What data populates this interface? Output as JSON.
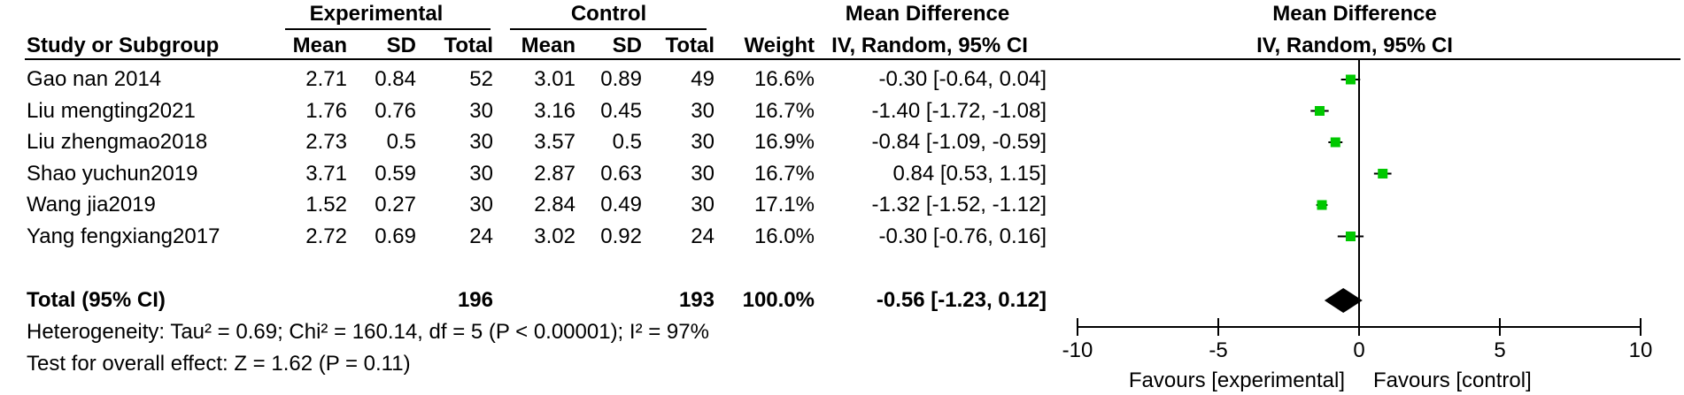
{
  "header": {
    "group1": "Experimental",
    "group2": "Control",
    "effect_title": "Mean Difference",
    "plot_title": "Mean Difference",
    "col_study": "Study or Subgroup",
    "col_mean1": "Mean",
    "col_sd1": "SD",
    "col_total1": "Total",
    "col_mean2": "Mean",
    "col_sd2": "SD",
    "col_total2": "Total",
    "col_weight": "Weight",
    "col_effect": "IV, Random, 95% CI",
    "plot_subtitle": "IV, Random, 95% CI"
  },
  "studies": [
    {
      "name": "Gao nan 2014",
      "mean1": "2.71",
      "sd1": "0.84",
      "total1": "52",
      "mean2": "3.01",
      "sd2": "0.89",
      "total2": "49",
      "weight": "16.6%",
      "ci_text": "-0.30 [-0.64, 0.04]"
    },
    {
      "name": "Liu mengting2021",
      "mean1": "1.76",
      "sd1": "0.76",
      "total1": "30",
      "mean2": "3.16",
      "sd2": "0.45",
      "total2": "30",
      "weight": "16.7%",
      "ci_text": "-1.40 [-1.72, -1.08]"
    },
    {
      "name": "Liu zhengmao2018",
      "mean1": "2.73",
      "sd1": "0.5",
      "total1": "30",
      "mean2": "3.57",
      "sd2": "0.5",
      "total2": "30",
      "weight": "16.9%",
      "ci_text": "-0.84 [-1.09, -0.59]"
    },
    {
      "name": "Shao yuchun2019",
      "mean1": "3.71",
      "sd1": "0.59",
      "total1": "30",
      "mean2": "2.87",
      "sd2": "0.63",
      "total2": "30",
      "weight": "16.7%",
      "ci_text": "0.84 [0.53, 1.15]"
    },
    {
      "name": "Wang jia2019",
      "mean1": "1.52",
      "sd1": "0.27",
      "total1": "30",
      "mean2": "2.84",
      "sd2": "0.49",
      "total2": "30",
      "weight": "17.1%",
      "ci_text": "-1.32 [-1.52, -1.12]"
    },
    {
      "name": "Yang fengxiang2017",
      "mean1": "2.72",
      "sd1": "0.69",
      "total1": "24",
      "mean2": "3.02",
      "sd2": "0.92",
      "total2": "24",
      "weight": "16.0%",
      "ci_text": "-0.30 [-0.76, 0.16]"
    }
  ],
  "total": {
    "label": "Total (95% CI)",
    "total1": "196",
    "total2": "193",
    "weight": "100.0%",
    "ci_text": "-0.56 [-1.23, 0.12]"
  },
  "heterogeneity": "Heterogeneity: Tau² = 0.69; Chi² = 160.14, df = 5 (P < 0.00001); I² = 97%",
  "overall_test": "Test for overall effect: Z = 1.62 (P = 0.11)",
  "favours_left": "Favours [experimental]",
  "favours_right": "Favours [control]",
  "colors": {
    "marker": "#00c800",
    "line": "#000000"
  },
  "chart_data": {
    "type": "forest",
    "xlim": [
      -10,
      10
    ],
    "ticks": [
      -10,
      -5,
      0,
      5,
      10
    ],
    "tick_labels": [
      "-10",
      "-5",
      "0",
      "5",
      "10"
    ],
    "null_line": 0,
    "series": [
      {
        "study": "Gao nan 2014",
        "md": -0.3,
        "lo": -0.64,
        "hi": 0.04,
        "weight": 16.6
      },
      {
        "study": "Liu mengting2021",
        "md": -1.4,
        "lo": -1.72,
        "hi": -1.08,
        "weight": 16.7
      },
      {
        "study": "Liu zhengmao2018",
        "md": -0.84,
        "lo": -1.09,
        "hi": -0.59,
        "weight": 16.9
      },
      {
        "study": "Shao yuchun2019",
        "md": 0.84,
        "lo": 0.53,
        "hi": 1.15,
        "weight": 16.7
      },
      {
        "study": "Wang jia2019",
        "md": -1.32,
        "lo": -1.52,
        "hi": -1.12,
        "weight": 17.1
      },
      {
        "study": "Yang fengxiang2017",
        "md": -0.3,
        "lo": -0.76,
        "hi": 0.16,
        "weight": 16.0
      }
    ],
    "pooled": {
      "md": -0.56,
      "lo": -1.23,
      "hi": 0.12
    }
  }
}
